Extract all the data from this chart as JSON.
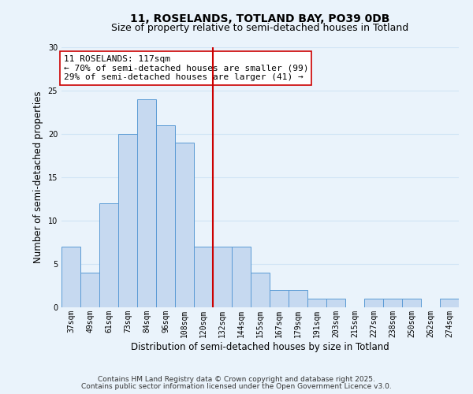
{
  "title": "11, ROSELANDS, TOTLAND BAY, PO39 0DB",
  "subtitle": "Size of property relative to semi-detached houses in Totland",
  "xlabel": "Distribution of semi-detached houses by size in Totland",
  "ylabel": "Number of semi-detached properties",
  "bar_labels": [
    "37sqm",
    "49sqm",
    "61sqm",
    "73sqm",
    "84sqm",
    "96sqm",
    "108sqm",
    "120sqm",
    "132sqm",
    "144sqm",
    "155sqm",
    "167sqm",
    "179sqm",
    "191sqm",
    "203sqm",
    "215sqm",
    "227sqm",
    "238sqm",
    "250sqm",
    "262sqm",
    "274sqm"
  ],
  "bar_values": [
    7,
    4,
    12,
    20,
    24,
    21,
    19,
    7,
    7,
    7,
    4,
    2,
    2,
    1,
    1,
    0,
    1,
    1,
    1,
    0,
    1
  ],
  "bar_color": "#c6d9f0",
  "bar_edge_color": "#5b9bd5",
  "vline_color": "#cc0000",
  "vline_pos": 7.5,
  "ylim": [
    0,
    30
  ],
  "yticks": [
    0,
    5,
    10,
    15,
    20,
    25,
    30
  ],
  "annotation_title": "11 ROSELANDS: 117sqm",
  "annotation_line1": "← 70% of semi-detached houses are smaller (99)",
  "annotation_line2": "29% of semi-detached houses are larger (41) →",
  "annotation_box_color": "#ffffff",
  "annotation_box_edge": "#cc0000",
  "footnote1": "Contains HM Land Registry data © Crown copyright and database right 2025.",
  "footnote2": "Contains public sector information licensed under the Open Government Licence v3.0.",
  "background_color": "#eaf3fb",
  "grid_color": "#d0e4f5",
  "title_fontsize": 10,
  "subtitle_fontsize": 9,
  "axis_label_fontsize": 8.5,
  "tick_fontsize": 7,
  "annotation_fontsize": 8,
  "footnote_fontsize": 6.5
}
